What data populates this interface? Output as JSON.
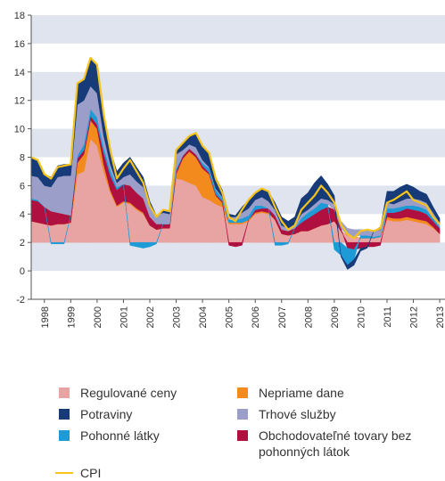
{
  "chart_data": {
    "type": "stacked-area",
    "x": [
      1998,
      1998.25,
      1998.5,
      1998.75,
      1999,
      1999.25,
      1999.5,
      1999.75,
      2000,
      2000.25,
      2000.5,
      2000.75,
      2001,
      2001.25,
      2001.5,
      2001.75,
      2002,
      2002.25,
      2002.5,
      2002.75,
      2003,
      2003.25,
      2003.5,
      2003.75,
      2004,
      2004.25,
      2004.5,
      2004.75,
      2005,
      2005.25,
      2005.5,
      2005.75,
      2006,
      2006.25,
      2006.5,
      2006.75,
      2007,
      2007.25,
      2007.5,
      2007.75,
      2008,
      2008.25,
      2008.5,
      2008.75,
      2009,
      2009.25,
      2009.5,
      2009.75,
      2010,
      2010.25,
      2010.5,
      2010.75,
      2011,
      2011.25,
      2011.5,
      2011.75,
      2012,
      2012.25,
      2012.5,
      2012.75,
      2013,
      2013.25,
      2013.5
    ],
    "baseline": 2,
    "series": [
      {
        "name": "Regulované ceny",
        "color": "#e8a3a3",
        "values": [
          1.5,
          1.4,
          1.3,
          1.2,
          1.3,
          1.3,
          1.4,
          4.8,
          5.0,
          7.3,
          6.8,
          5.0,
          3.5,
          2.5,
          2.8,
          2.7,
          2.3,
          2.0,
          1.2,
          0.9,
          1.0,
          1.0,
          4.5,
          4.4,
          4.2,
          4.0,
          3.2,
          3.0,
          2.7,
          2.5,
          1.3,
          1.3,
          1.3,
          1.5,
          2.0,
          2.1,
          2.0,
          1.6,
          0.6,
          0.5,
          0.6,
          0.8,
          0.8,
          1.0,
          1.2,
          1.3,
          1.5,
          0.8,
          0.5,
          0.4,
          0.3,
          0.3,
          0.3,
          0.4,
          1.6,
          1.5,
          1.5,
          1.6,
          1.5,
          1.4,
          1.3,
          1.0,
          0.6
        ]
      },
      {
        "name": "Nepriame dane",
        "color": "#f28a1e",
        "values": [
          0,
          0,
          0,
          0,
          0,
          0,
          0,
          0.8,
          1.2,
          1.3,
          1.2,
          0.5,
          0.2,
          0.1,
          0.1,
          0.1,
          0.1,
          0.1,
          0,
          0,
          0,
          0,
          0.3,
          1.5,
          2.2,
          2.0,
          2.0,
          1.8,
          0.6,
          0.3,
          0.1,
          0.1,
          0.1,
          0.1,
          0.1,
          0.1,
          0.1,
          0,
          0,
          0,
          0,
          0,
          0,
          0,
          0,
          0,
          0,
          0,
          0,
          0,
          0,
          0,
          0,
          0,
          0.2,
          0.2,
          0.2,
          0.2,
          0.2,
          0.2,
          0.2,
          0.1,
          0
        ]
      },
      {
        "name": "Obchodovateľné tovary bez pohonných látok",
        "color": "#b01040",
        "values": [
          1.5,
          1.5,
          1.2,
          1.0,
          0.8,
          0.7,
          0.5,
          0.3,
          0.3,
          0.3,
          0.3,
          0.8,
          1.0,
          1.1,
          1.2,
          1.2,
          1.1,
          1.0,
          0.6,
          0.4,
          0.3,
          0.3,
          0.2,
          0.2,
          0.2,
          0.2,
          0.2,
          0.1,
          0.1,
          0.1,
          -0.2,
          -0.3,
          -0.2,
          0,
          0.2,
          0.2,
          0.3,
          0.3,
          0.3,
          0.3,
          0.4,
          0.6,
          0.9,
          1.0,
          1.1,
          1.2,
          0.8,
          0.2,
          -0.4,
          -0.5,
          -0.4,
          -0.3,
          -0.3,
          -0.2,
          0.3,
          0.4,
          0.5,
          0.6,
          0.6,
          0.6,
          0.5,
          0.4,
          0.4
        ]
      },
      {
        "name": "Pohonné látky",
        "color": "#1e9bd7",
        "values": [
          0.1,
          0.1,
          0,
          -0.1,
          -0.1,
          -0.1,
          0,
          0.2,
          0.4,
          0.5,
          0.5,
          0.4,
          0.4,
          0.2,
          0,
          -0.2,
          -0.3,
          -0.4,
          -0.3,
          -0.1,
          0,
          0,
          0.2,
          0,
          0,
          0,
          0.2,
          0.3,
          0.3,
          0.2,
          0.2,
          0.2,
          0.3,
          0.3,
          0.3,
          0.2,
          0,
          -0.2,
          -0.2,
          -0.1,
          0,
          0.3,
          0.4,
          0.4,
          0.5,
          0.2,
          -0.5,
          -0.9,
          -1.2,
          -0.7,
          0.2,
          0.2,
          0.1,
          0.1,
          0.3,
          0.3,
          0.3,
          0.2,
          0.3,
          0.3,
          0.3,
          0.2,
          0.1
        ]
      },
      {
        "name": "Trhové služby",
        "color": "#9a9ec9",
        "values": [
          1.6,
          1.6,
          1.5,
          1.7,
          2.5,
          2.7,
          2.8,
          3.6,
          3.1,
          1.6,
          1.7,
          0.8,
          0.4,
          0.3,
          0.5,
          0.8,
          0.8,
          0.8,
          0.8,
          0.6,
          0.8,
          0.7,
          1.0,
          0.4,
          0.3,
          0.5,
          0.2,
          0.1,
          0.1,
          0.1,
          0.2,
          0.2,
          0.4,
          0.5,
          0.4,
          0.6,
          0.5,
          0.4,
          0.3,
          0.2,
          0.2,
          0.3,
          0.2,
          0.3,
          0.3,
          0.3,
          0.4,
          0.5,
          0.5,
          0.5,
          0.4,
          0.4,
          0.4,
          0.4,
          0.4,
          0.3,
          0.4,
          0.5,
          0.5,
          0.5,
          0.5,
          0.4,
          0.3
        ]
      },
      {
        "name": "Potraviny",
        "color": "#173a78",
        "values": [
          1.3,
          1.2,
          0.8,
          0.7,
          0.8,
          0.8,
          0.8,
          1.5,
          1.5,
          2.0,
          2.0,
          1.5,
          1.0,
          0.8,
          1.0,
          1.2,
          1.0,
          0.7,
          0.3,
          0,
          0.2,
          0.2,
          0.3,
          0.5,
          0.6,
          1.0,
          1.0,
          1.0,
          0.8,
          0.5,
          0.2,
          0.1,
          0.4,
          0.6,
          0.5,
          0.6,
          0.7,
          0.5,
          0.6,
          0.5,
          0.6,
          1.1,
          1.2,
          1.5,
          1.6,
          1.1,
          0.6,
          -0.1,
          -0.3,
          -0.4,
          -0.2,
          -0.1,
          0,
          0.2,
          0.8,
          0.9,
          1.0,
          1.0,
          0.8,
          0.6,
          0.6,
          0.4,
          0.3
        ]
      }
    ],
    "line": {
      "name": "CPI",
      "color": "#f6c31b",
      "values": [
        8.0,
        7.8,
        6.8,
        6.5,
        7.3,
        7.4,
        7.5,
        13.2,
        13.5,
        15.0,
        14.5,
        11.0,
        8.5,
        6.5,
        7.2,
        7.8,
        7.0,
        6.2,
        4.6,
        3.8,
        4.3,
        4.2,
        8.5,
        9.0,
        9.5,
        9.7,
        8.8,
        8.3,
        6.5,
        5.5,
        3.8,
        3.5,
        4.3,
        5.0,
        5.5,
        5.8,
        5.6,
        4.5,
        3.5,
        2.9,
        3.2,
        4.3,
        4.8,
        5.3,
        6.0,
        5.5,
        4.8,
        3.3,
        2.6,
        2.3,
        2.8,
        2.9,
        2.8,
        3.0,
        4.8,
        5.0,
        5.3,
        5.6,
        5.0,
        4.8,
        4.6,
        3.8,
        3.3
      ]
    },
    "xlim": [
      1998,
      2013.7
    ],
    "xticks": [
      {
        "value": 1998.5,
        "label": "1998"
      },
      {
        "value": 1999.5,
        "label": "1999"
      },
      {
        "value": 2000.5,
        "label": "2000"
      },
      {
        "value": 2001.5,
        "label": "2001"
      },
      {
        "value": 2002.5,
        "label": "2002"
      },
      {
        "value": 2003.5,
        "label": "2003"
      },
      {
        "value": 2004.5,
        "label": "2004"
      },
      {
        "value": 2005.5,
        "label": "2005"
      },
      {
        "value": 2006.5,
        "label": "2006"
      },
      {
        "value": 2007.5,
        "label": "2007"
      },
      {
        "value": 2008.5,
        "label": "2008"
      },
      {
        "value": 2009.5,
        "label": "2009"
      },
      {
        "value": 2010.5,
        "label": "2010"
      },
      {
        "value": 2011.5,
        "label": "2011"
      },
      {
        "value": 2012.5,
        "label": "2012"
      },
      {
        "value": 2013.5,
        "label": "2013"
      }
    ],
    "ylim": [
      -2,
      18
    ],
    "yticks": [
      -2,
      0,
      2,
      4,
      6,
      8,
      10,
      12,
      14,
      16,
      18
    ],
    "grid": "bands"
  }
}
